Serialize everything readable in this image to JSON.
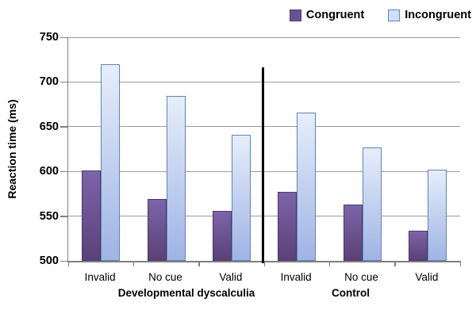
{
  "chart_data": {
    "type": "bar",
    "title": "",
    "ylabel": "Reaction time (ms)",
    "xlabel": "",
    "ylim": [
      500,
      750
    ],
    "yticks": [
      500,
      550,
      600,
      650,
      700,
      750
    ],
    "grid": true,
    "legend_position": "top-right",
    "categories": [
      "Invalid",
      "No cue",
      "Valid",
      "Invalid",
      "No cue",
      "Valid"
    ],
    "groups": [
      {
        "label": "Developmental dyscalculia",
        "categories": [
          "Invalid",
          "No cue",
          "Valid"
        ]
      },
      {
        "label": "Control",
        "categories": [
          "Invalid",
          "No cue",
          "Valid"
        ]
      }
    ],
    "group_divider": true,
    "series": [
      {
        "name": "Congruent",
        "values": [
          601,
          569,
          556,
          577,
          563,
          534
        ],
        "fill_top": "#7d64a9",
        "fill_bottom": "#5a4177",
        "border": "#4b3a66",
        "legend_fill": "#6a5193"
      },
      {
        "name": "Incongruent",
        "values": [
          720,
          684,
          641,
          666,
          627,
          602
        ],
        "fill_top": "#e6eefa",
        "fill_bottom": "#9fb4e4",
        "border": "#5c84b8",
        "legend_fill": "#cfe0f6"
      }
    ],
    "axis_color": "#7f7f7f",
    "gridline_color": "#9b9b9b",
    "divider_color": "#000000"
  }
}
